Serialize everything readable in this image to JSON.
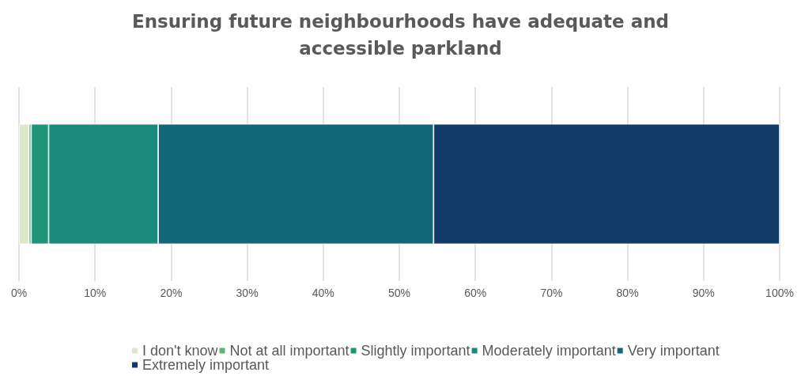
{
  "chart_data": {
    "type": "bar",
    "orientation": "horizontal",
    "stacked": true,
    "title": "Ensuring future neighbourhoods have adequate and\naccessible parkland",
    "categories": [
      null
    ],
    "series": [
      {
        "name": "I don't know",
        "color": "#dde8c8",
        "values": [
          1.3
        ]
      },
      {
        "name": "Not at all important",
        "color": "#5fb37a",
        "values": [
          0.3
        ]
      },
      {
        "name": "Slightly important",
        "color": "#1f9478",
        "values": [
          2.3
        ]
      },
      {
        "name": "Moderately important",
        "color": "#1a8a7c",
        "values": [
          14.4
        ]
      },
      {
        "name": "Very important",
        "color": "#136578",
        "values": [
          36.2
        ]
      },
      {
        "name": "Extremely important",
        "color": "#0f3b66",
        "values": [
          45.5
        ]
      }
    ],
    "xlim": [
      0,
      100
    ],
    "xticks": [
      {
        "value": 0,
        "label": "0%"
      },
      {
        "value": 10,
        "label": "10%"
      },
      {
        "value": 20,
        "label": "20%"
      },
      {
        "value": 30,
        "label": "30%"
      },
      {
        "value": 40,
        "label": "40%"
      },
      {
        "value": 50,
        "label": "50%"
      },
      {
        "value": 60,
        "label": "60%"
      },
      {
        "value": 70,
        "label": "70%"
      },
      {
        "value": 80,
        "label": "80%"
      },
      {
        "value": 90,
        "label": "90%"
      },
      {
        "value": 100,
        "label": "100%"
      }
    ],
    "grid": "x",
    "legend": "bottom"
  }
}
